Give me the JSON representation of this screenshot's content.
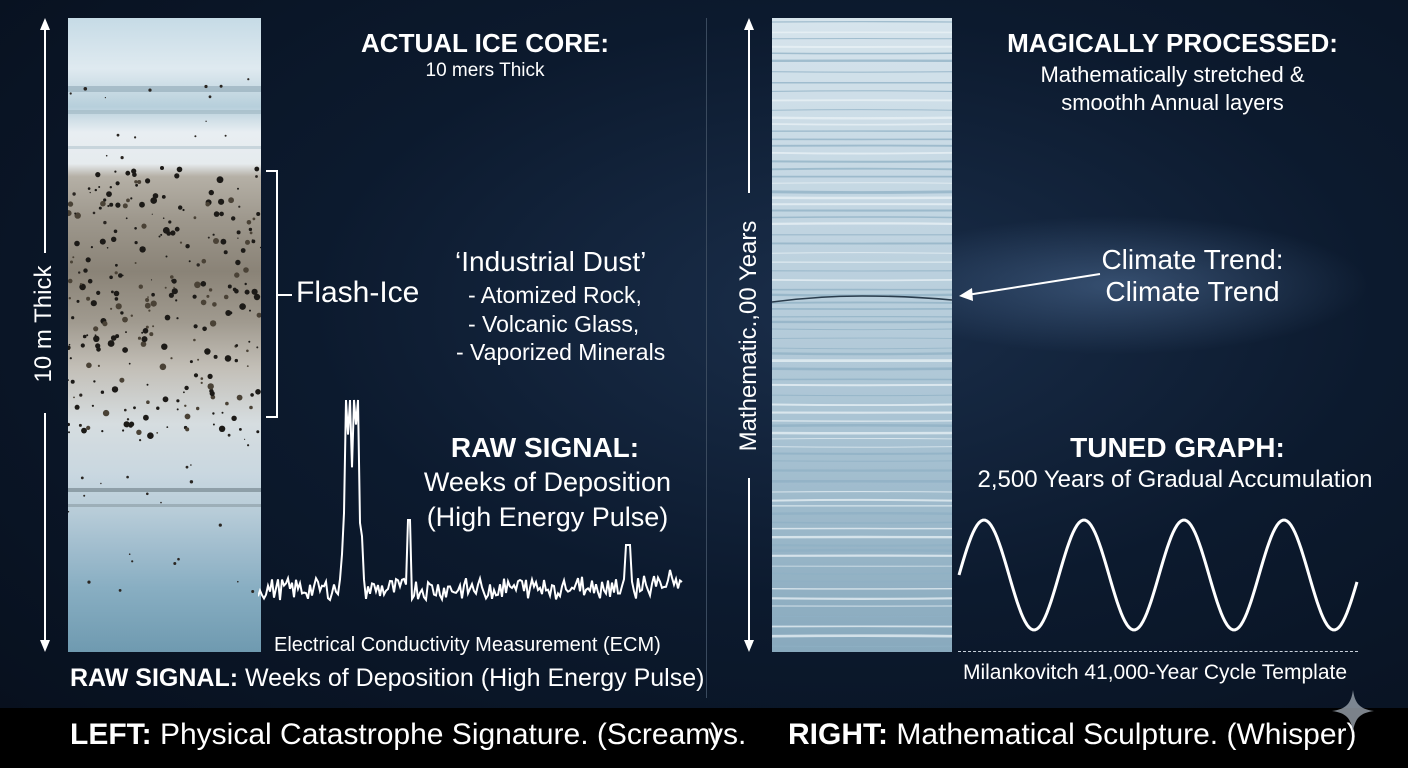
{
  "left": {
    "title": "ACTUAL ICE CORE:",
    "subtitle": "10 mers Thick",
    "scale_label": "10 m Thick",
    "flash_label": "Flash-Ice",
    "dust_title": "‘Industrial Dust’",
    "dust_items": [
      "- Atomized Rock,",
      "- Volcanic Glass,",
      "- Vaporized Minerals"
    ],
    "raw_title": "RAW SIGNAL:",
    "raw_line1": "Weeks of Deposition",
    "raw_line2": "(High Energy Pulse)",
    "ecm_label": "Electrical Conductivity Measurement (ECM)",
    "caption_bold": "RAW SIGNAL:",
    "caption_rest": " Weeks of Deposition (High Energy Pulse)"
  },
  "right": {
    "title": "MAGICALLY PROCESSED:",
    "subtitle_line1": "Mathematically stretched &",
    "subtitle_line2": "smoothh Annual layers",
    "scale_label": "Mathematic.,00 Years",
    "trend_line1": "Climate Trend:",
    "trend_line2": "Climate Trend",
    "tuned_title": "TUNED GRAPH:",
    "tuned_sub": "2,500 Years of Gradual Accumulation",
    "template_label": "Milankovitch 41,000-Year Cycle Template"
  },
  "footer": {
    "left_bold": "LEFT:",
    "left_rest": " Physical Catastrophe Signature. (Scream)",
    "vs": "vs.",
    "right_bold": "RIGHT:",
    "right_rest": " Mathematical Sculpture. (Whisper)"
  },
  "icons": {
    "corner": "sparkle-icon"
  }
}
